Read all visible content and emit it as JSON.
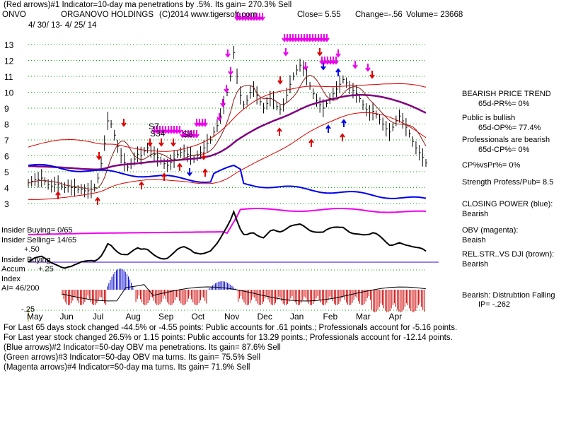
{
  "header": {
    "line1": "(Red arrows)#1 Indicator=10-day ma penetrations by .5%.  Its gain= 270.3% Sell",
    "ticker": "ONVO",
    "company": "ORGANOVO HOLDINGS",
    "copyright": "(C)2014 www.tigersoft.com",
    "close": "Close=  5.55",
    "change": "Change=-.56",
    "volume": "Volume= 23668",
    "date_range": "4/ 30/ 13-  4/ 25/ 14"
  },
  "right_panel": {
    "trend_title": "BEARISH PRICE TREND",
    "pr_line": "65d-PR%=  0%",
    "public_title": "Public is bullish",
    "op_line": "65d-OP%= 77.4%",
    "pro_title": "Professionals are bearish",
    "cp_line": "65d-CP%= 0%",
    "cpvspr": "CP%vsPr%=   0%",
    "strength": "Strength Profess/Pub= 8.5",
    "closing_power_title": "CLOSING POWER (blue):",
    "closing_power_value": "Bearish",
    "obv_title": "OBV (magenta):",
    "obv_value": "Beaish",
    "relstr_title": "REL.STR..VS DJI (brown):",
    "relstr_value": "Bearish",
    "bearish_distribution": "Bearish:  Distrubtion Falling",
    "ip_line": "IP= -.262"
  },
  "left_panel": {
    "insider_buying": "Insider Buying= 0/65",
    "insider_selling": "Insider Selling= 14/65",
    "plus50": "+.50",
    "accum_line1": "Insider Buying",
    "accum_line2": "Accum",
    "plus25": "+.25",
    "index_label": "Index",
    "ai_line": "AI= 46/200",
    "minus25": "-.25"
  },
  "annotations": {
    "s7": "S7",
    "s34": "S34",
    "s8": "S8"
  },
  "footer": {
    "line1": "For Last 65 days stock changed  -44.5% or -4.55 points:  Public accounts for  .61 points.;  Professionals account for -5.16 points.",
    "line2": "For Last year stock changed   26.5% or  1.15 points:  Public accounts for  13.29 points.;  Professionals account for -12.14 points.",
    "line3": "(Blue arrows)#2 Indicator=50-day OBV ma penetrations.  Its gain= 87.6% Sell",
    "line4": "(Green arrows)#3 Indicator=50-day OBV ma turns.  Its gain= 75.5% Sell",
    "line5": "(Magenta arrows)#4 Indicator=50-day ma turns.  Its gain= 71.9% Sell"
  },
  "colors": {
    "price": "#000000",
    "bands": "#dd0000",
    "ma50": "#800080",
    "closing_power": "#0000ee",
    "obv": "#ee00ee",
    "relstr": "#a0522d",
    "accum_pos": "#0000cc",
    "accum_neg": "#cc0000",
    "grid": "#00aa00"
  },
  "chart_data": {
    "type": "line",
    "title": "ORGANOVO HOLDINGS",
    "ylim": [
      3,
      13.5
    ],
    "y_ticks": [
      3,
      4,
      5,
      6,
      7,
      8,
      9,
      10,
      11,
      12,
      13
    ],
    "x_ticks": [
      "May",
      "Jun",
      "Jul",
      "Aug",
      "Sep",
      "Oct",
      "Nov",
      "Dec",
      "Jan",
      "Feb",
      "Mar",
      "Apr"
    ],
    "series": [
      {
        "values": [
          4.3,
          4.4,
          4.5,
          4.5,
          4.6,
          4.4,
          4.2,
          4.1,
          4.2,
          4.2,
          4.1,
          4.0,
          4.1,
          4.0,
          4.0,
          3.9,
          3.9,
          3.8,
          3.8,
          3.9,
          4.0,
          4.6,
          5.5,
          6.8,
          8.2,
          8.0,
          7.3,
          6.6,
          6.0,
          5.6,
          5.3,
          5.5,
          5.8,
          6.1,
          6.0,
          6.3,
          6.5,
          6.3,
          6.1,
          5.9,
          5.7,
          5.5,
          5.4,
          5.6,
          5.8,
          6.1,
          6.2,
          6.3,
          6.1,
          6.0,
          5.8,
          6.0,
          6.2,
          6.5,
          6.8,
          7.0,
          7.5,
          7.9,
          8.5,
          9.2,
          10.0,
          11.0,
          12.5,
          11.0,
          9.8,
          9.2,
          9.5,
          10.0,
          10.2,
          9.8,
          9.4,
          9.0,
          9.3,
          9.6,
          9.5,
          9.1,
          8.9,
          9.2,
          9.8,
          10.5,
          11.0,
          11.4,
          11.7,
          11.5,
          11.0,
          10.4,
          9.9,
          9.5,
          9.2,
          9.0,
          9.3,
          9.6,
          9.9,
          10.2,
          10.5,
          10.8,
          10.6,
          10.3,
          10.1,
          9.9,
          9.6,
          9.2,
          8.9,
          8.7,
          8.8,
          8.6,
          8.3,
          8.0,
          7.7,
          7.5,
          7.8,
          8.2,
          8.5,
          8.2,
          7.8,
          7.4,
          6.9,
          6.5,
          6.2,
          5.9,
          5.55
        ]
      },
      {
        "values": [
          5.35,
          5.35,
          5.34,
          5.33,
          5.33,
          5.32,
          5.31,
          5.3,
          5.29,
          5.28,
          5.27,
          5.25,
          5.24,
          5.23,
          5.21,
          5.2,
          5.18,
          5.17,
          5.16,
          5.15,
          5.14,
          5.14,
          5.16,
          5.2,
          5.26,
          5.32,
          5.37,
          5.4,
          5.43,
          5.45,
          5.47,
          5.49,
          5.51,
          5.53,
          5.55,
          5.57,
          5.6,
          5.62,
          5.64,
          5.65,
          5.66,
          5.67,
          5.68,
          5.69,
          5.71,
          5.73,
          5.75,
          5.77,
          5.79,
          5.81,
          5.82,
          5.84,
          5.87,
          5.91,
          5.95,
          6.0,
          6.07,
          6.15,
          6.25,
          6.37,
          6.5,
          6.65,
          6.82,
          6.98,
          7.12,
          7.25,
          7.38,
          7.5,
          7.62,
          7.73,
          7.83,
          7.93,
          8.02,
          8.11,
          8.2,
          8.28,
          8.36,
          8.44,
          8.53,
          8.62,
          8.72,
          8.82,
          8.92,
          9.02,
          9.11,
          9.19,
          9.26,
          9.32,
          9.38,
          9.43,
          9.48,
          9.53,
          9.58,
          9.63,
          9.68,
          9.72,
          9.76,
          9.79,
          9.81,
          9.82,
          9.83,
          9.83,
          9.82,
          9.81,
          9.79,
          9.76,
          9.73,
          9.69,
          9.64,
          9.59,
          9.53,
          9.47,
          9.41,
          9.34,
          9.26,
          9.18,
          9.09,
          9.0,
          8.9,
          8.8,
          8.7
        ]
      }
    ]
  }
}
